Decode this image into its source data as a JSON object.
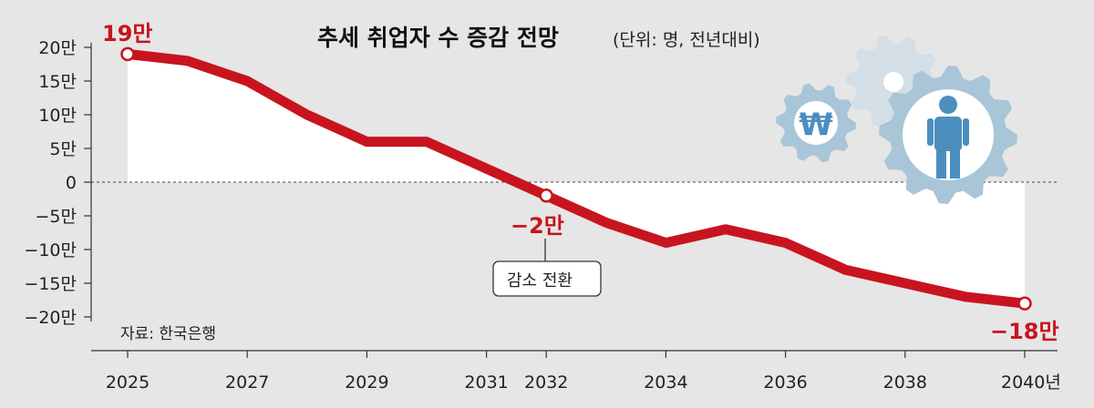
{
  "chart_data": {
    "type": "area",
    "title": "추세 취업자 수 증감 전망",
    "subtitle": "(단위: 명, 전년대비)",
    "x": [
      2025,
      2026,
      2027,
      2028,
      2029,
      2030,
      2031,
      2032,
      2033,
      2034,
      2035,
      2036,
      2037,
      2038,
      2039,
      2040
    ],
    "series": [
      {
        "values": [
          19,
          18,
          15,
          10,
          6,
          6,
          2,
          -2,
          -6,
          -9,
          -7,
          -9,
          -13,
          -15,
          -17,
          -18
        ]
      }
    ],
    "ylim": [
      -20,
      20
    ],
    "yticks": [
      20,
      15,
      10,
      5,
      0,
      -5,
      -10,
      -15,
      -20
    ],
    "ytick_labels": [
      "20만",
      "15만",
      "10만",
      "5만",
      "0",
      "−5만",
      "−10만",
      "−15만",
      "−20만"
    ],
    "xticks": [
      2025,
      2027,
      2029,
      2031,
      2032,
      2034,
      2036,
      2038,
      2040
    ],
    "xtick_labels": [
      "2025",
      "2027",
      "2029",
      "2031",
      "2032",
      "2034",
      "2036",
      "2038",
      "2040년"
    ],
    "annotations": {
      "start_label": "19만",
      "turn_label": "−2만",
      "turn_box": "감소 전환",
      "end_label": "−18만"
    },
    "source": "자료: 한국은행",
    "grid": false,
    "colors": {
      "line": "#c8141e",
      "background": "#e6e6e6",
      "fill": "#ffffff",
      "gear_dark": "#a9c5d8",
      "gear_light": "#d3dee6",
      "person": "#4b8fbf"
    },
    "icons": [
      "won-gear-icon",
      "small-gear-icon",
      "person-gear-icon"
    ]
  }
}
